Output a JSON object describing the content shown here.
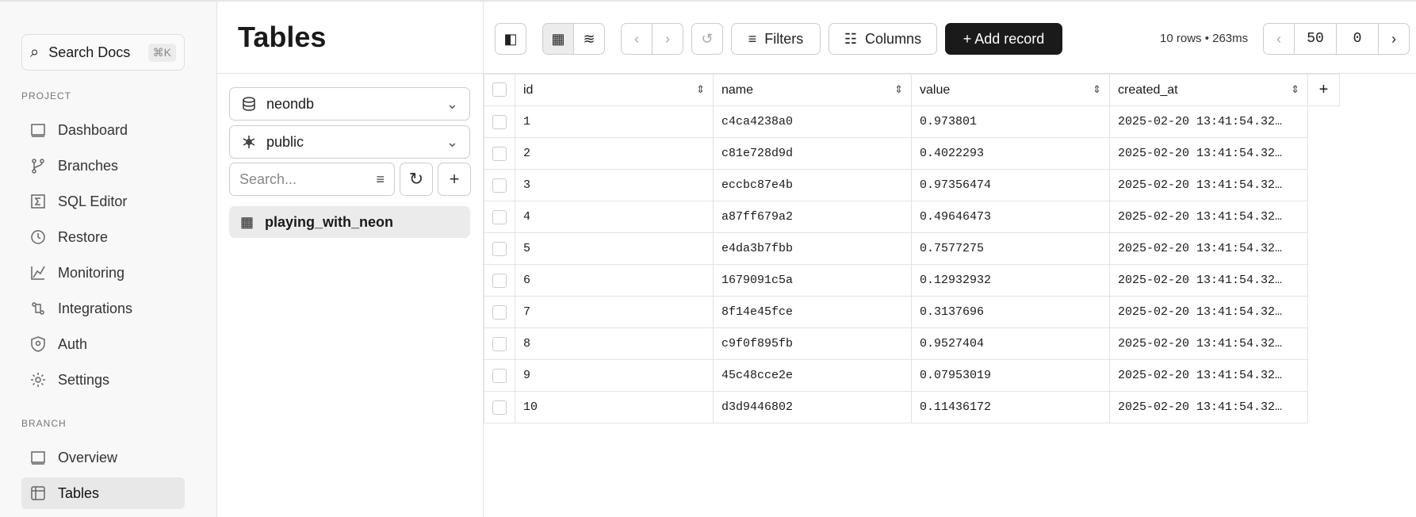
{
  "sidebar": {
    "search_label": "Search Docs",
    "search_shortcut": "⌘K",
    "project_label": "PROJECT",
    "project_items": [
      {
        "label": "Dashboard",
        "icon": "dashboard-icon"
      },
      {
        "label": "Branches",
        "icon": "branch-icon"
      },
      {
        "label": "SQL Editor",
        "icon": "sql-editor-icon"
      },
      {
        "label": "Restore",
        "icon": "restore-icon"
      },
      {
        "label": "Monitoring",
        "icon": "monitoring-icon"
      },
      {
        "label": "Integrations",
        "icon": "integrations-icon"
      },
      {
        "label": "Auth",
        "icon": "shield-icon"
      },
      {
        "label": "Settings",
        "icon": "gear-icon"
      }
    ],
    "branch_label": "BRANCH",
    "branch_items": [
      {
        "label": "Overview",
        "icon": "overview-icon"
      },
      {
        "label": "Tables",
        "icon": "table-icon",
        "selected": true
      }
    ]
  },
  "panel": {
    "title": "Tables",
    "database": "neondb",
    "schema": "public",
    "search_placeholder": "Search...",
    "tables": [
      "playing_with_neon"
    ]
  },
  "toolbar": {
    "filters": "Filters",
    "columns": "Columns",
    "add_record": "+ Add record",
    "status": "10 rows • 263ms",
    "limit": "50",
    "offset": "0"
  },
  "grid": {
    "columns": [
      "id",
      "name",
      "value",
      "created_at"
    ],
    "rows": [
      [
        "1",
        "c4ca4238a0",
        "0.973801",
        "2025-02-20 13:41:54.32…"
      ],
      [
        "2",
        "c81e728d9d",
        "0.4022293",
        "2025-02-20 13:41:54.32…"
      ],
      [
        "3",
        "eccbc87e4b",
        "0.97356474",
        "2025-02-20 13:41:54.32…"
      ],
      [
        "4",
        "a87ff679a2",
        "0.49646473",
        "2025-02-20 13:41:54.32…"
      ],
      [
        "5",
        "e4da3b7fbb",
        "0.7577275",
        "2025-02-20 13:41:54.32…"
      ],
      [
        "6",
        "1679091c5a",
        "0.12932932",
        "2025-02-20 13:41:54.32…"
      ],
      [
        "7",
        "8f14e45fce",
        "0.3137696",
        "2025-02-20 13:41:54.32…"
      ],
      [
        "8",
        "c9f0f895fb",
        "0.9527404",
        "2025-02-20 13:41:54.32…"
      ],
      [
        "9",
        "45c48cce2e",
        "0.07953019",
        "2025-02-20 13:41:54.32…"
      ],
      [
        "10",
        "d3d9446802",
        "0.11436172",
        "2025-02-20 13:41:54.32…"
      ]
    ]
  }
}
